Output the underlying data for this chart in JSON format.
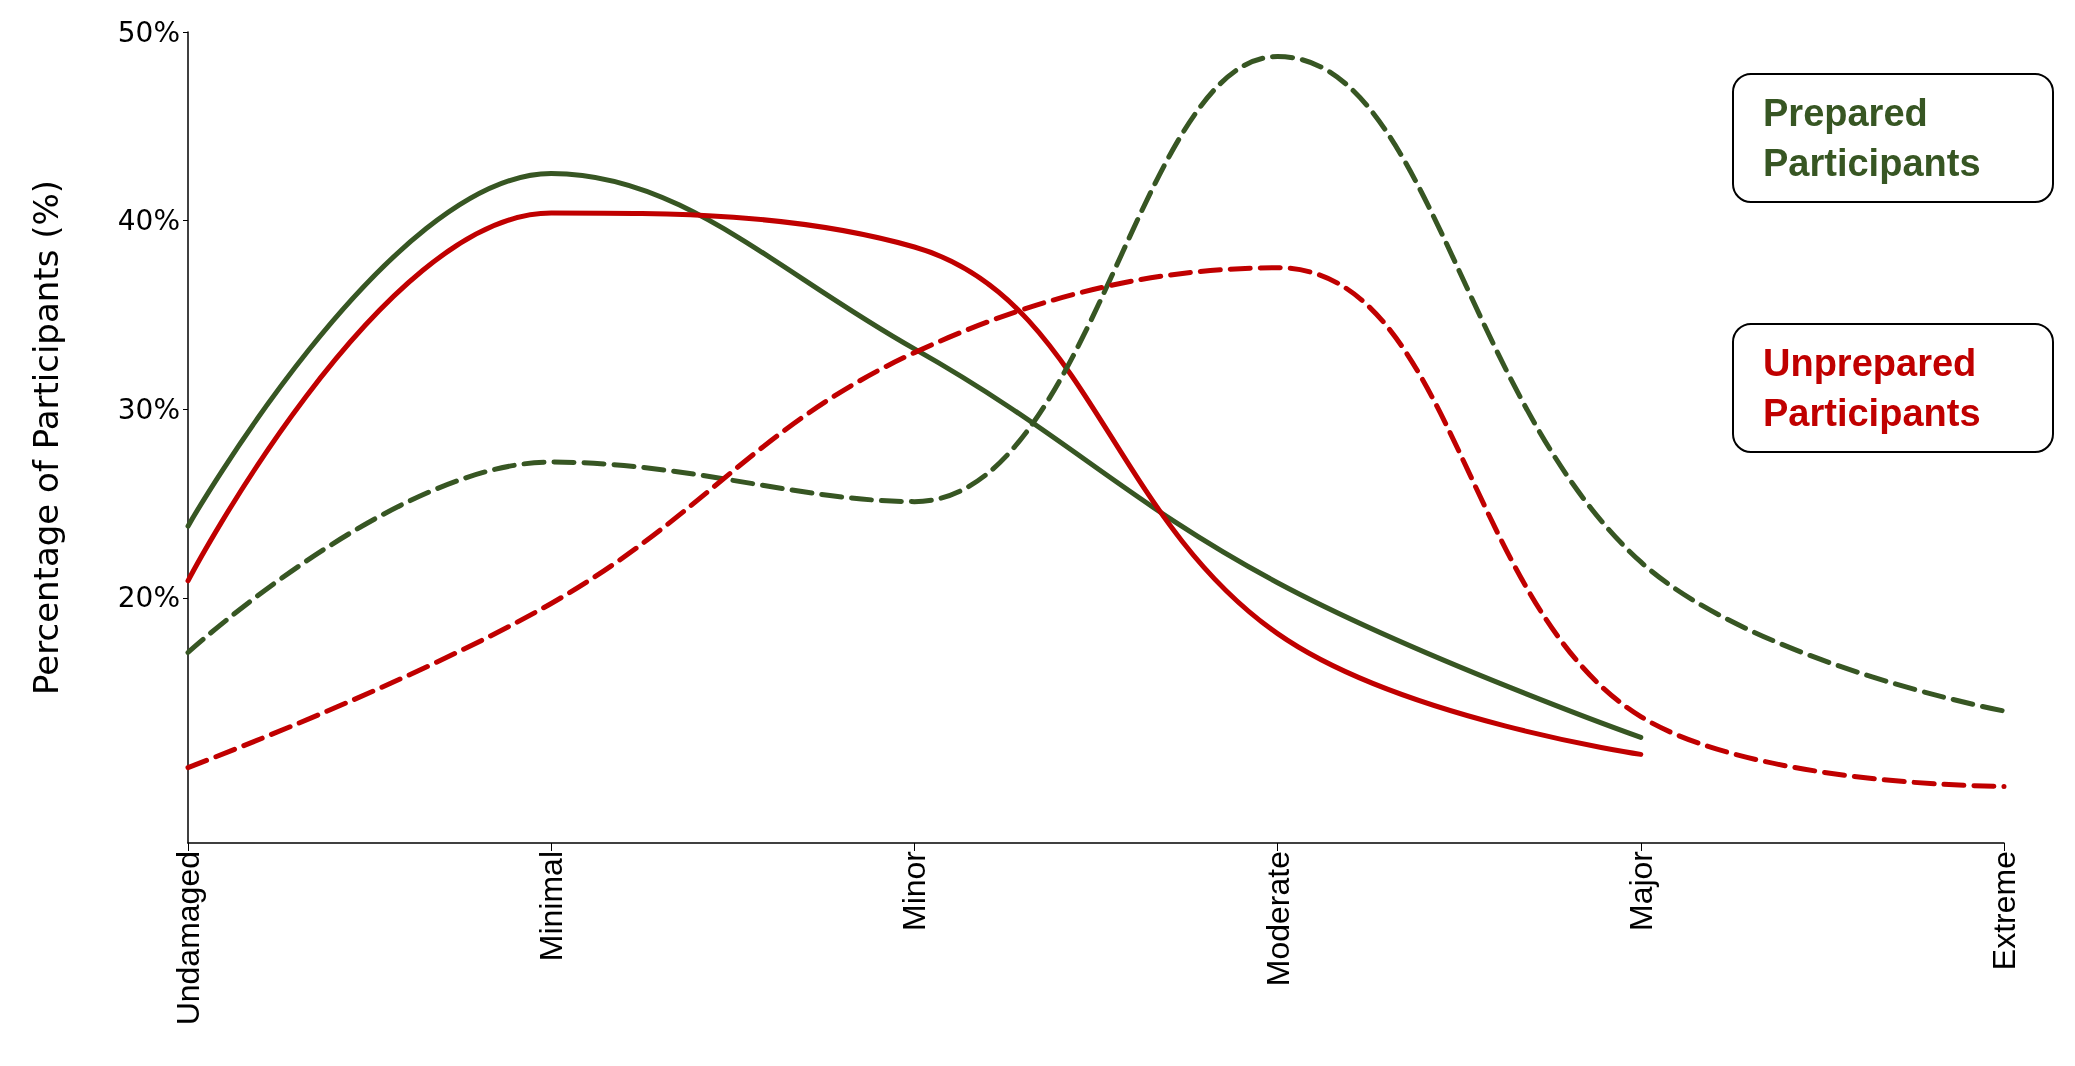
{
  "chart_data": {
    "type": "line",
    "ylabel": "Percentage of Participants (%)",
    "categories": [
      "Undamaged",
      "Minimal",
      "Minor",
      "Moderate",
      "Major",
      "Extreme"
    ],
    "ylim": [
      7,
      50
    ],
    "yticks": [
      {
        "value": 20,
        "label": "20%"
      },
      {
        "value": 30,
        "label": "30%"
      },
      {
        "value": 40,
        "label": "40%"
      },
      {
        "value": 50,
        "label": "50%"
      }
    ],
    "series": [
      {
        "name": "Prepared Participants",
        "color": "#375623",
        "line_style": "solid",
        "values": [
          23.8,
          42.5,
          33.2,
          20.8,
          12.6,
          null
        ]
      },
      {
        "name": "Unprepared Participants",
        "color": "#c00000",
        "line_style": "solid",
        "values": [
          20.9,
          40.4,
          38.6,
          18.1,
          11.7,
          null
        ]
      },
      {
        "color": "#375623",
        "line_style": "dashed",
        "values": [
          17.1,
          27.2,
          25.1,
          48.7,
          21.9,
          14.0
        ]
      },
      {
        "color": "#c00000",
        "line_style": "dashed",
        "values": [
          11.0,
          19.7,
          33.0,
          37.5,
          13.7,
          10.0
        ]
      }
    ],
    "grid": false,
    "legend": "top right",
    "marker": "none"
  }
}
